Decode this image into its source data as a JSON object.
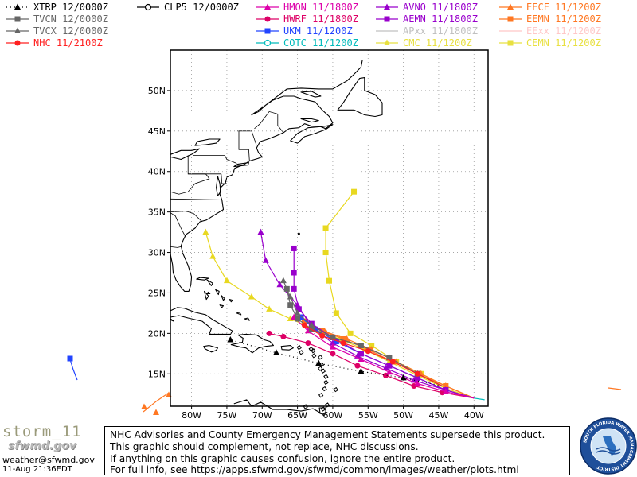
{
  "legend": [
    {
      "label": "XTRP 12/0000Z",
      "color": "#000000",
      "marker": "triangle",
      "dash": "1,4"
    },
    {
      "label": "TVCN 12/0000Z",
      "color": "#666666",
      "marker": "square"
    },
    {
      "label": "TVCX 12/0000Z",
      "color": "#666666",
      "marker": "triangle"
    },
    {
      "label": "NHC 11/2100Z",
      "color": "#ff2020",
      "marker": "circle"
    },
    {
      "label": "CLP5 12/0000Z",
      "color": "#000000",
      "marker": "open-circle"
    },
    {
      "label": "HMON 11/1800Z",
      "color": "#dd00aa",
      "marker": "triangle"
    },
    {
      "label": "HWRF 11/1800Z",
      "color": "#dd0066",
      "marker": "circle"
    },
    {
      "label": "UKM 11/1200Z",
      "color": "#2244ff",
      "marker": "square"
    },
    {
      "label": "COTC 11/1200Z",
      "color": "#00bbbb",
      "marker": "open-circle"
    },
    {
      "label": "AVNO 11/1800Z",
      "color": "#9900cc",
      "marker": "triangle"
    },
    {
      "label": "AEMN 11/1800Z",
      "color": "#9900cc",
      "marker": "square"
    },
    {
      "label": "APxx 11/1800Z",
      "color": "#c0c0c0",
      "marker": "none"
    },
    {
      "label": "CMC 11/1200Z",
      "color": "#e8e040",
      "marker": "triangle"
    },
    {
      "label": "EECF 11/1200Z",
      "color": "#ff7722",
      "marker": "triangle"
    },
    {
      "label": "EEMN 11/1200Z",
      "color": "#ff7722",
      "marker": "square"
    },
    {
      "label": "EExx 11/1200Z",
      "color": "#ffc8c8",
      "marker": "none"
    },
    {
      "label": "CEMN 11/1200Z",
      "color": "#e8e040",
      "marker": "square"
    }
  ],
  "map": {
    "lat_labels": [
      "50N",
      "45N",
      "40N",
      "35N",
      "30N",
      "25N",
      "20N",
      "15N"
    ],
    "lon_labels": [
      "80W",
      "75W",
      "70W",
      "65W",
      "60W",
      "55W",
      "50W",
      "45W",
      "40W"
    ],
    "lat_values": [
      50,
      45,
      40,
      35,
      30,
      25,
      20,
      15
    ],
    "lon_values": [
      -80,
      -75,
      -70,
      -65,
      -60,
      -55,
      -50,
      -45,
      -40
    ],
    "lon_range": [
      -83,
      -38
    ],
    "lat_range": [
      11,
      55
    ],
    "tracks": {
      "XTRP": [
        [
          -44.5,
          13.5
        ],
        [
          -50,
          14.5
        ],
        [
          -56,
          15.3
        ],
        [
          -62,
          16.3
        ],
        [
          -68,
          17.6
        ],
        [
          -74.5,
          19.2
        ]
      ],
      "TVCN": [
        [
          -44.5,
          13.5
        ],
        [
          -48,
          15
        ],
        [
          -52,
          17
        ],
        [
          -56,
          18.5
        ],
        [
          -60,
          19.5
        ],
        [
          -63,
          20.5
        ],
        [
          -65,
          21.8
        ],
        [
          -66,
          23.5
        ],
        [
          -66.5,
          25.5
        ]
      ],
      "TVCX": [
        [
          -44.5,
          13.5
        ],
        [
          -48,
          15
        ],
        [
          -52,
          17
        ],
        [
          -56,
          18.5
        ],
        [
          -60,
          19.5
        ],
        [
          -63,
          21
        ],
        [
          -65,
          22.5
        ],
        [
          -66,
          24.5
        ],
        [
          -67,
          26.5
        ]
      ],
      "NHC": [
        [
          -44.5,
          13.5
        ],
        [
          -48,
          15
        ],
        [
          -51.5,
          16.5
        ],
        [
          -55,
          17.8
        ],
        [
          -58.5,
          18.8
        ],
        [
          -61.5,
          19.7
        ],
        [
          -64,
          21
        ]
      ],
      "HMON": [
        [
          -40,
          12
        ],
        [
          -44,
          12.8
        ],
        [
          -48,
          13.8
        ],
        [
          -52,
          15.2
        ],
        [
          -56,
          16.8
        ],
        [
          -60,
          18.3
        ],
        [
          -63.5,
          20.3
        ],
        [
          -65.5,
          22
        ]
      ],
      "HWRF": [
        [
          -40,
          12
        ],
        [
          -44.5,
          12.7
        ],
        [
          -48.5,
          13.5
        ],
        [
          -52.5,
          14.8
        ],
        [
          -56.5,
          16
        ],
        [
          -60,
          17.5
        ],
        [
          -63.5,
          18.8
        ],
        [
          -67,
          19.6
        ],
        [
          -69,
          20
        ]
      ],
      "UKM": [
        [
          -40,
          12
        ],
        [
          -44,
          13
        ],
        [
          -48,
          14.5
        ],
        [
          -52,
          16
        ],
        [
          -56,
          17.5
        ],
        [
          -59.5,
          19
        ],
        [
          -62.5,
          20.5
        ],
        [
          -64.5,
          22
        ]
      ],
      "AVNO": [
        [
          -40,
          12
        ],
        [
          -44,
          13
        ],
        [
          -48.5,
          14.2
        ],
        [
          -52.5,
          15.7
        ],
        [
          -56.5,
          17.2
        ],
        [
          -60,
          18.8
        ],
        [
          -63,
          20.8
        ],
        [
          -65,
          23.5
        ],
        [
          -67.5,
          26
        ],
        [
          -69.5,
          29
        ],
        [
          -70.2,
          32.5
        ]
      ],
      "AEMN": [
        [
          -40,
          12
        ],
        [
          -44,
          13
        ],
        [
          -48,
          14.5
        ],
        [
          -52,
          16
        ],
        [
          -56,
          17.5
        ],
        [
          -60,
          19.5
        ],
        [
          -63,
          21.2
        ],
        [
          -64.8,
          23
        ],
        [
          -65.5,
          25.5
        ],
        [
          -65.5,
          27.5
        ],
        [
          -65.5,
          30.5
        ]
      ],
      "CMC": [
        [
          -40,
          12
        ],
        [
          -44,
          13.2
        ],
        [
          -48,
          14.8
        ],
        [
          -52,
          16.5
        ],
        [
          -55.5,
          18
        ],
        [
          -59,
          19.3
        ],
        [
          -62.5,
          20.5
        ],
        [
          -66,
          21.8
        ],
        [
          -69,
          23
        ],
        [
          -71.5,
          24.5
        ],
        [
          -75,
          26.5
        ],
        [
          -77,
          29.5
        ],
        [
          -78,
          32.5
        ]
      ],
      "EECF": [
        [
          -40,
          12
        ],
        [
          -44,
          13.5
        ],
        [
          -47.5,
          15
        ],
        [
          -51,
          16.5
        ],
        [
          -54.5,
          18
        ],
        [
          -58,
          19.3
        ],
        [
          -61,
          20.2
        ],
        [
          -63,
          21
        ]
      ],
      "EEMN": [
        [
          -40,
          12
        ],
        [
          -44,
          13.5
        ],
        [
          -48,
          15
        ],
        [
          -51.5,
          16.5
        ],
        [
          -55,
          18
        ],
        [
          -58.5,
          19.3
        ],
        [
          -61.5,
          20.3
        ],
        [
          -64,
          21.5
        ]
      ],
      "CEMN": [
        [
          -40,
          12
        ],
        [
          -44,
          13.5
        ],
        [
          -47.5,
          15
        ],
        [
          -51,
          16.5
        ],
        [
          -54.5,
          18.5
        ],
        [
          -57.5,
          20
        ],
        [
          -59.5,
          22.5
        ],
        [
          -60.5,
          26.5
        ],
        [
          -61,
          30
        ],
        [
          -61,
          33
        ],
        [
          -57,
          37.5
        ]
      ],
      "COTC": [
        [
          -40,
          12
        ],
        [
          -38.5,
          11.8
        ]
      ]
    }
  },
  "disclaimer": [
    "NHC Advisories and County Emergency Management Statements supersede this product.",
    "This graphic should complement, not replace, NHC discussions.",
    "If anything on this graphic causes confusion, ignore the entire product.",
    "For full info, see   https://apps.sfwmd.gov/sfwmd/common/images/weather/plots.html"
  ],
  "footer": {
    "storm_name": "storm_11",
    "logo_text": "sfwmd.gov",
    "email": "weather@sfwmd.gov",
    "timestamp": "11-Aug 21:36EDT"
  },
  "seal": {
    "text": "SOUTH FLORIDA WATER MANAGEMENT DISTRICT"
  }
}
